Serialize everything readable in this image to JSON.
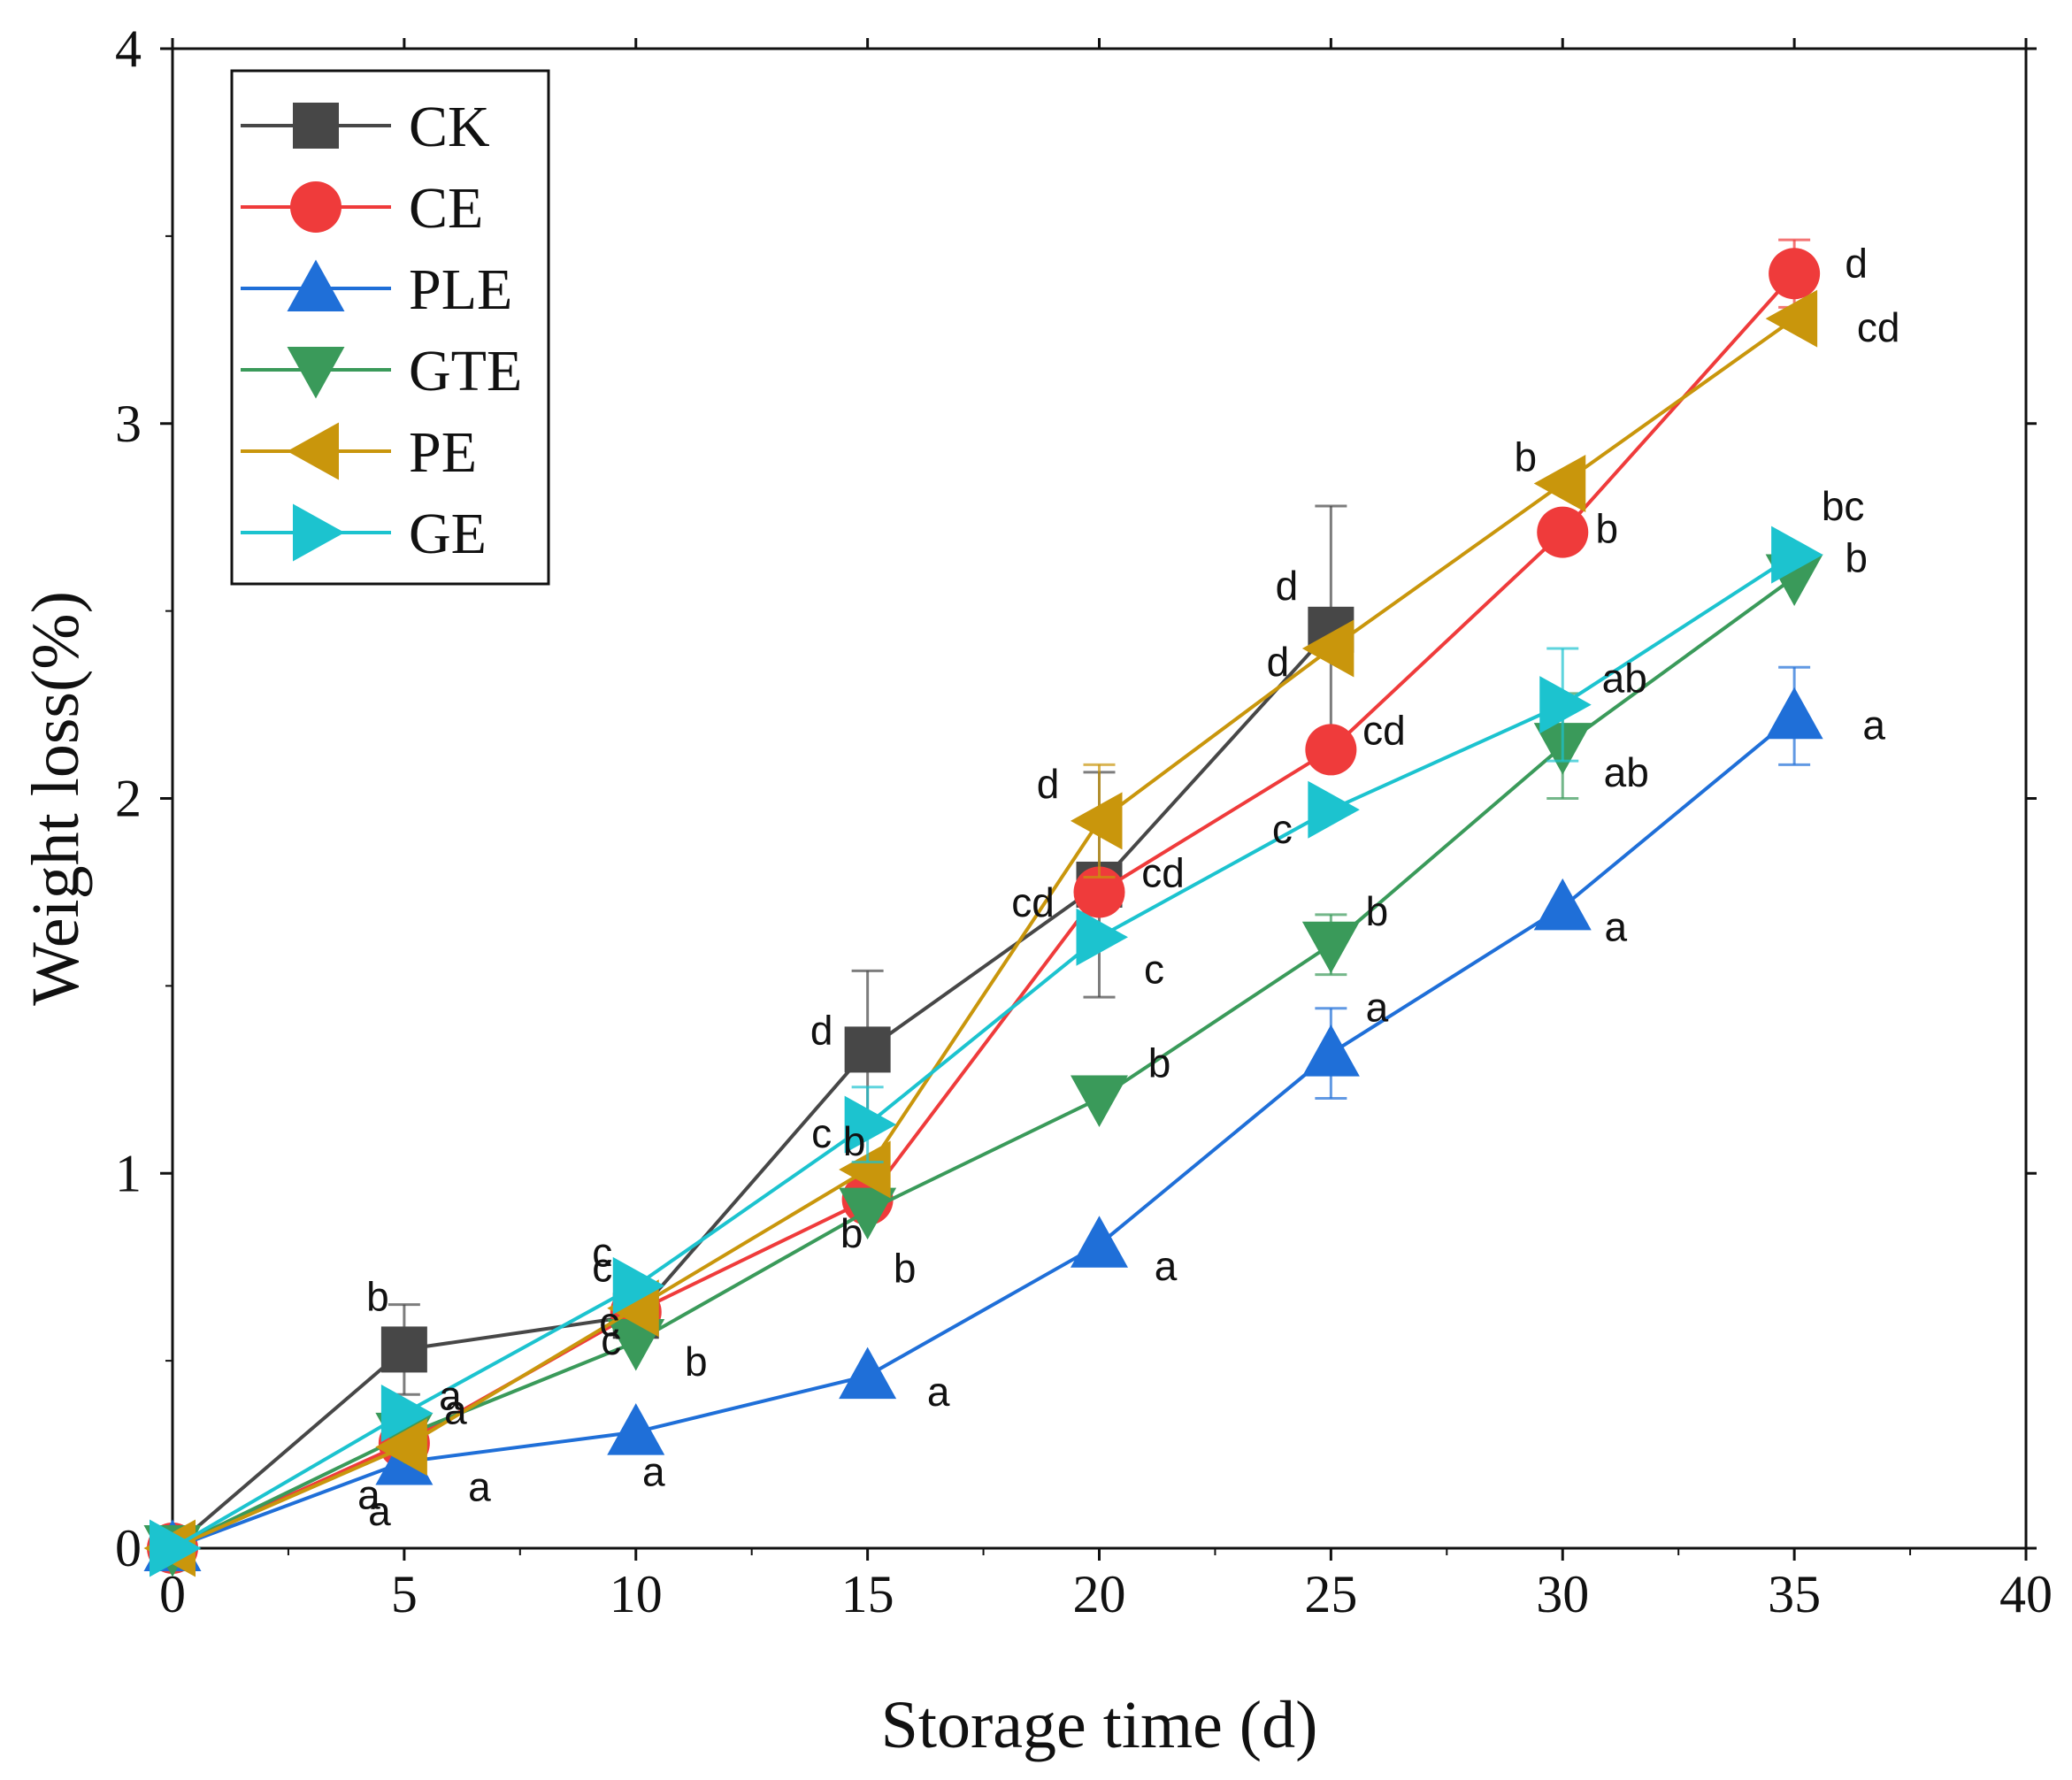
{
  "chart_data": {
    "type": "line",
    "title": "",
    "xlabel": "Storage time (d)",
    "ylabel": "Weight loss(%)",
    "xlim": [
      0,
      40
    ],
    "ylim": [
      0,
      4
    ],
    "xticks": [
      0,
      5,
      10,
      15,
      20,
      25,
      30,
      35,
      40
    ],
    "yticks": [
      0,
      1,
      2,
      3,
      4
    ],
    "grid": false,
    "legend_position": "top-left",
    "series": [
      {
        "name": "CK",
        "color": "#474747",
        "marker": "square",
        "x": [
          0,
          5,
          10,
          15,
          20,
          25
        ],
        "y": [
          0,
          0.53,
          0.62,
          1.33,
          1.77,
          2.45
        ],
        "err": [
          0,
          0.12,
          0,
          0.21,
          0.3,
          0.33
        ],
        "labels": [
          "",
          "b",
          "c",
          "d",
          "cd",
          "d"
        ]
      },
      {
        "name": "CE",
        "color": "#ef3b3b",
        "marker": "circle",
        "x": [
          0,
          5,
          10,
          15,
          20,
          25,
          30,
          35
        ],
        "y": [
          0,
          0.28,
          0.63,
          0.93,
          1.75,
          2.13,
          2.71,
          3.4
        ],
        "err": [
          0,
          0,
          0,
          0,
          0,
          0,
          0,
          0.09
        ],
        "labels": [
          "",
          "a",
          "c",
          "b",
          "cd",
          "cd",
          "b",
          "d"
        ]
      },
      {
        "name": "PLE",
        "color": "#1f6fd8",
        "marker": "triangle-up",
        "x": [
          0,
          5,
          10,
          15,
          20,
          25,
          30,
          35
        ],
        "y": [
          0,
          0.23,
          0.31,
          0.46,
          0.81,
          1.32,
          1.71,
          2.22
        ],
        "err": [
          0,
          0,
          0,
          0,
          0,
          0.12,
          0,
          0.13
        ],
        "labels": [
          "",
          "a",
          "a",
          "a",
          "a",
          "a",
          "a",
          "a"
        ]
      },
      {
        "name": "GTE",
        "color": "#3a9a5a",
        "marker": "triangle-down",
        "x": [
          0,
          5,
          10,
          15,
          20,
          25,
          30,
          35
        ],
        "y": [
          0,
          0.3,
          0.55,
          0.9,
          1.2,
          1.61,
          2.14,
          2.59
        ],
        "err": [
          0,
          0,
          0,
          0,
          0,
          0.08,
          0.14,
          0
        ],
        "labels": [
          "",
          "a",
          "b",
          "b",
          "b",
          "b",
          "ab",
          "b"
        ]
      },
      {
        "name": "PE",
        "color": "#c9960c",
        "marker": "triangle-left",
        "x": [
          0,
          5,
          10,
          15,
          20,
          25,
          30,
          35
        ],
        "y": [
          0,
          0.27,
          0.64,
          1.01,
          1.94,
          2.4,
          2.84,
          3.28
        ],
        "err": [
          0,
          0,
          0,
          0,
          0.15,
          0,
          0,
          0
        ],
        "labels": [
          "",
          "a",
          "c",
          "b",
          "d",
          "d",
          "b",
          "cd"
        ]
      },
      {
        "name": "GE",
        "color": "#1cc3cf",
        "marker": "triangle-right",
        "x": [
          0,
          5,
          10,
          15,
          20,
          25,
          30,
          35
        ],
        "y": [
          0,
          0.36,
          0.7,
          1.13,
          1.63,
          1.97,
          2.25,
          2.65
        ],
        "err": [
          0,
          0,
          0,
          0.1,
          0,
          0,
          0.15,
          0
        ],
        "labels": [
          "",
          "a",
          "c",
          "c",
          "c",
          "c",
          "ab",
          "bc"
        ]
      }
    ]
  }
}
